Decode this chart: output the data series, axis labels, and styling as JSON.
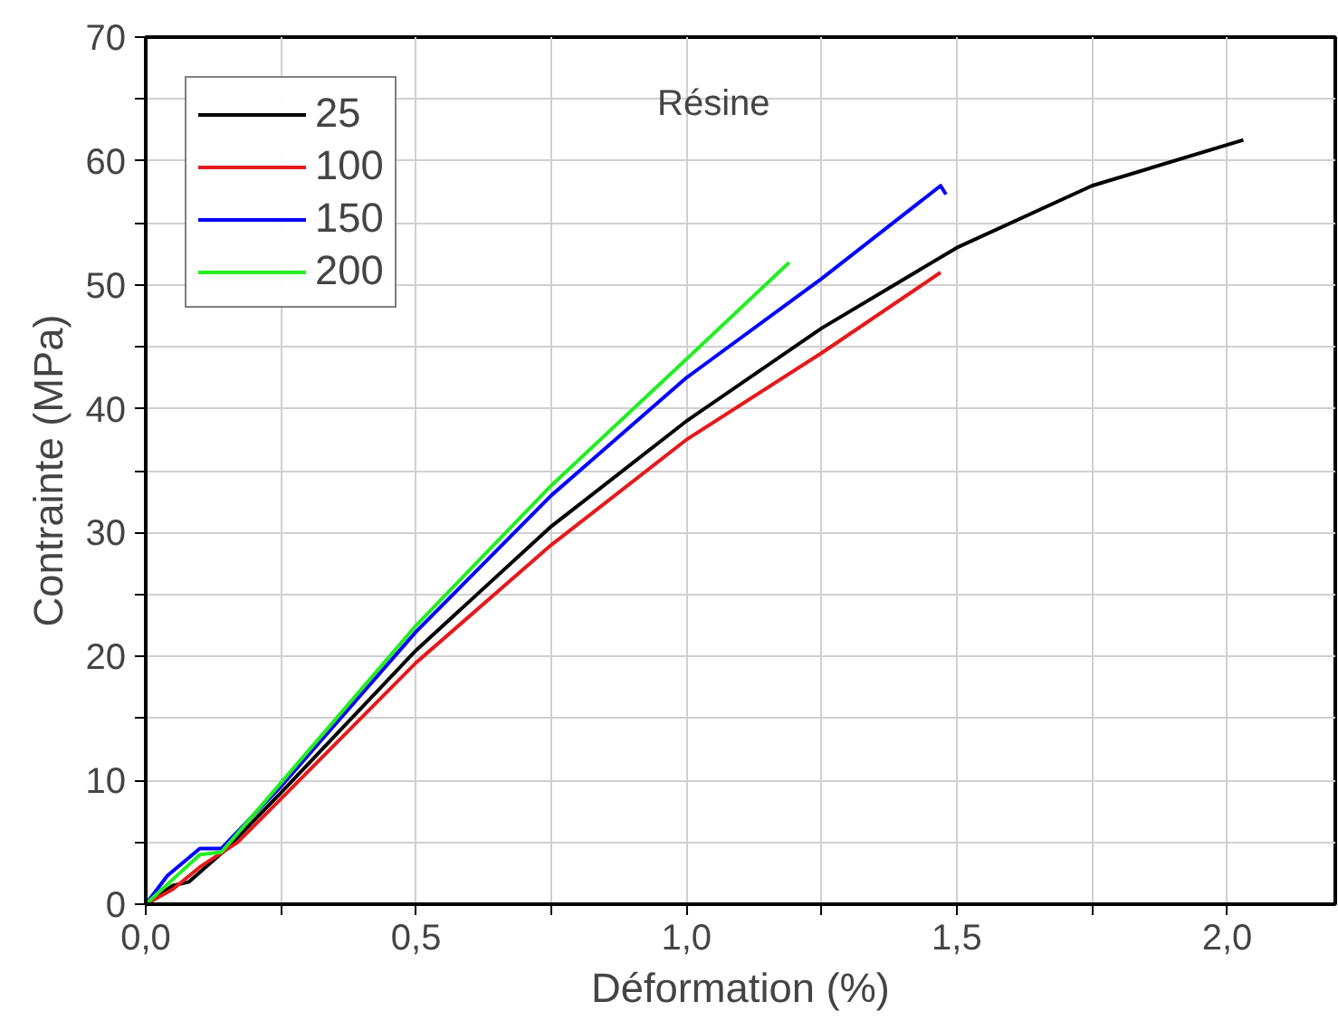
{
  "chart_data": {
    "type": "line",
    "xlabel": "Déformation (%)",
    "ylabel": "Contrainte (MPa)",
    "annotations": [
      "Résine"
    ],
    "xlim": [
      0,
      2.2
    ],
    "ylim": [
      0,
      70
    ],
    "xticks": [
      {
        "value": 0,
        "label": "0,0"
      },
      {
        "value": 0.25,
        "label": null
      },
      {
        "value": 0.5,
        "label": "0,5"
      },
      {
        "value": 0.75,
        "label": null
      },
      {
        "value": 1.0,
        "label": "1,0"
      },
      {
        "value": 1.25,
        "label": null
      },
      {
        "value": 1.5,
        "label": "1,5"
      },
      {
        "value": 1.75,
        "label": null
      },
      {
        "value": 2.0,
        "label": "2,0"
      }
    ],
    "yticks": [
      0,
      {
        "value": 5,
        "label": null
      },
      10,
      {
        "value": 15,
        "label": null
      },
      20,
      {
        "value": 25,
        "label": null
      },
      30,
      {
        "value": 35,
        "label": null
      },
      40,
      {
        "value": 45,
        "label": null
      },
      50,
      {
        "value": 55,
        "label": null
      },
      60,
      {
        "value": 65,
        "label": null
      },
      70
    ],
    "grid": true,
    "legend": "top left",
    "marker": "none",
    "line_style": "solid",
    "series": [
      {
        "name": "25",
        "color": "#000000",
        "x": [
          0,
          0.05,
          0.08,
          0.15,
          0.25,
          0.5,
          0.75,
          1.0,
          1.25,
          1.5,
          1.75,
          2.03
        ],
        "values": [
          0,
          1.5,
          1.8,
          4.5,
          9,
          20.5,
          30.5,
          39,
          46.5,
          53,
          58,
          61.7
        ]
      },
      {
        "name": "100",
        "color": "#e41a1c",
        "x": [
          0,
          0.05,
          0.1,
          0.17,
          0.25,
          0.5,
          0.75,
          1.0,
          1.25,
          1.47
        ],
        "values": [
          0,
          1.2,
          3,
          5,
          8.5,
          19.5,
          29,
          37.5,
          44.5,
          51
        ]
      },
      {
        "name": "150",
        "color": "#0000ff",
        "x": [
          0,
          0.04,
          0.1,
          0.14,
          0.25,
          0.5,
          0.75,
          1.0,
          1.25,
          1.47,
          1.48
        ],
        "values": [
          0,
          2.3,
          4.5,
          4.5,
          9.5,
          22,
          33,
          42.5,
          50.5,
          58,
          57.3
        ]
      },
      {
        "name": "200",
        "color": "#22ee22",
        "x": [
          0,
          0.05,
          0.1,
          0.14,
          0.25,
          0.5,
          0.75,
          1.0,
          1.19
        ],
        "values": [
          0,
          2,
          4,
          4.2,
          9.8,
          22.5,
          33.8,
          44,
          51.8
        ]
      }
    ]
  }
}
